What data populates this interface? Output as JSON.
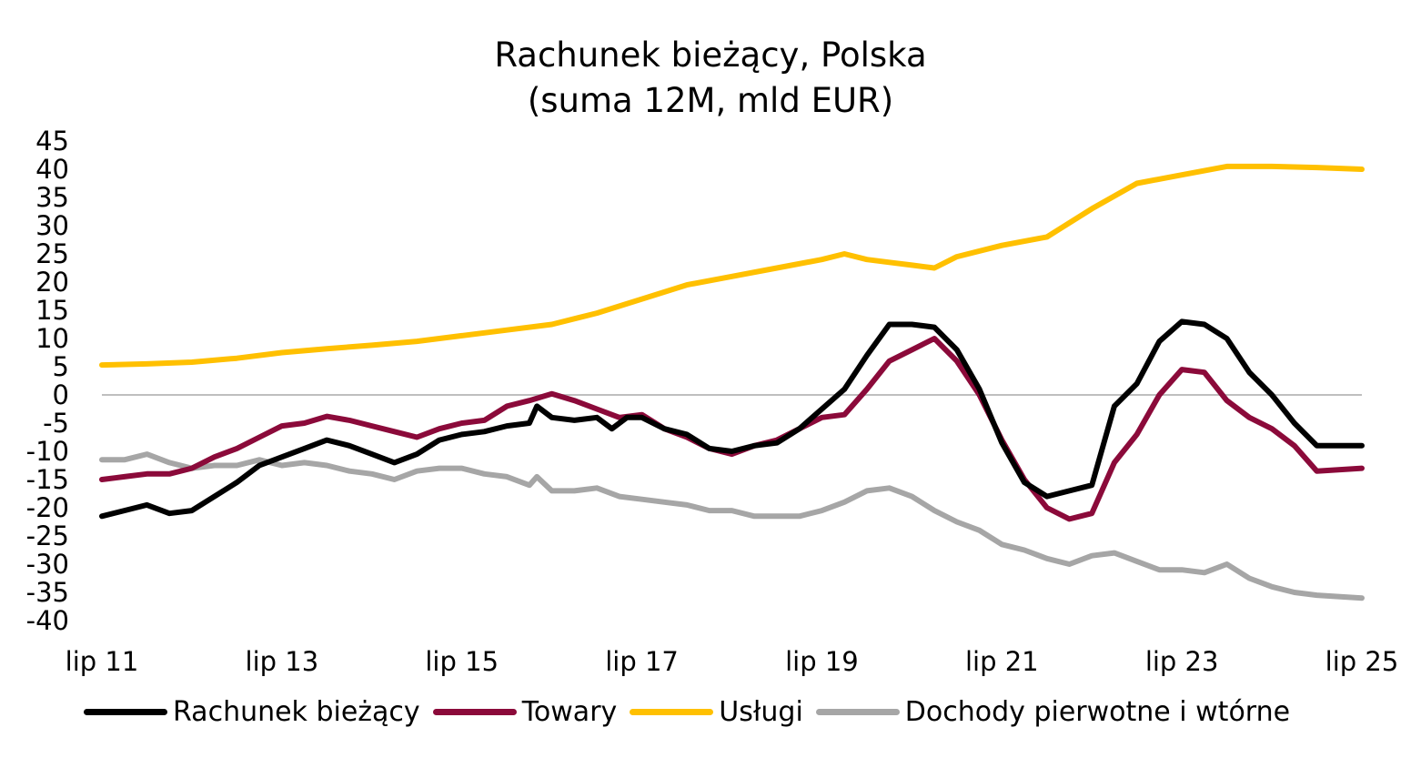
{
  "chart_data": {
    "type": "line",
    "title": [
      "Rachunek bieżący, Polska",
      "(suma 12M, mld EUR)"
    ],
    "xlabel": "",
    "ylabel": "",
    "x_tick_labels": [
      "lip 11",
      "lip 13",
      "lip 15",
      "lip 17",
      "lip 19",
      "lip 21",
      "lip 23",
      "lip 25"
    ],
    "y_ticks": [
      45,
      40,
      35,
      30,
      25,
      20,
      15,
      10,
      5,
      0,
      -5,
      -10,
      -15,
      -20,
      -25,
      -30,
      -35,
      -40
    ],
    "ylim": [
      -40,
      45
    ],
    "xlim": [
      "2011-07",
      "2025-07"
    ],
    "grid": false,
    "zero_line": true,
    "legend_position": "bottom",
    "series": [
      {
        "name": "Rachunek bieżący",
        "color": "#000000",
        "points": [
          [
            "2011-07",
            -21.5
          ],
          [
            "2011-10",
            -20.5
          ],
          [
            "2012-01",
            -19.5
          ],
          [
            "2012-04",
            -21
          ],
          [
            "2012-07",
            -20.5
          ],
          [
            "2012-10",
            -18
          ],
          [
            "2013-01",
            -15.5
          ],
          [
            "2013-04",
            -12.5
          ],
          [
            "2013-07",
            -11
          ],
          [
            "2013-10",
            -9.5
          ],
          [
            "2014-01",
            -8
          ],
          [
            "2014-04",
            -9
          ],
          [
            "2014-07",
            -10.5
          ],
          [
            "2014-10",
            -12
          ],
          [
            "2015-01",
            -10.5
          ],
          [
            "2015-04",
            -8
          ],
          [
            "2015-07",
            -7
          ],
          [
            "2015-10",
            -6.5
          ],
          [
            "2016-01",
            -5.5
          ],
          [
            "2016-04",
            -5
          ],
          [
            "2016-05",
            -2
          ],
          [
            "2016-07",
            -4
          ],
          [
            "2016-10",
            -4.5
          ],
          [
            "2017-01",
            -4
          ],
          [
            "2017-03",
            -6
          ],
          [
            "2017-05",
            -4
          ],
          [
            "2017-07",
            -4
          ],
          [
            "2017-10",
            -6
          ],
          [
            "2018-01",
            -7
          ],
          [
            "2018-04",
            -9.5
          ],
          [
            "2018-07",
            -10
          ],
          [
            "2018-10",
            -9
          ],
          [
            "2019-01",
            -8.5
          ],
          [
            "2019-04",
            -6
          ],
          [
            "2019-07",
            -2.5
          ],
          [
            "2019-10",
            1
          ],
          [
            "2020-01",
            7
          ],
          [
            "2020-04",
            12.5
          ],
          [
            "2020-07",
            12.5
          ],
          [
            "2020-10",
            12
          ],
          [
            "2021-01",
            8
          ],
          [
            "2021-04",
            1
          ],
          [
            "2021-07",
            -8.5
          ],
          [
            "2021-10",
            -15.5
          ],
          [
            "2022-01",
            -18
          ],
          [
            "2022-04",
            -17
          ],
          [
            "2022-07",
            -16
          ],
          [
            "2022-10",
            -2
          ],
          [
            "2023-01",
            2
          ],
          [
            "2023-04",
            9.5
          ],
          [
            "2023-07",
            13
          ],
          [
            "2023-10",
            12.5
          ],
          [
            "2024-01",
            10
          ],
          [
            "2024-04",
            4
          ],
          [
            "2024-07",
            0
          ],
          [
            "2024-10",
            -5
          ],
          [
            "2025-01",
            -9
          ],
          [
            "2025-07",
            -9
          ]
        ]
      },
      {
        "name": "Towary",
        "color": "#8b0a3a",
        "points": [
          [
            "2011-07",
            -15
          ],
          [
            "2011-10",
            -14.5
          ],
          [
            "2012-01",
            -14
          ],
          [
            "2012-04",
            -14
          ],
          [
            "2012-07",
            -13
          ],
          [
            "2012-10",
            -11
          ],
          [
            "2013-01",
            -9.5
          ],
          [
            "2013-04",
            -7.5
          ],
          [
            "2013-07",
            -5.5
          ],
          [
            "2013-10",
            -5
          ],
          [
            "2014-01",
            -3.8
          ],
          [
            "2014-04",
            -4.5
          ],
          [
            "2014-07",
            -5.5
          ],
          [
            "2014-10",
            -6.5
          ],
          [
            "2015-01",
            -7.5
          ],
          [
            "2015-04",
            -6
          ],
          [
            "2015-07",
            -5
          ],
          [
            "2015-10",
            -4.5
          ],
          [
            "2016-01",
            -2
          ],
          [
            "2016-04",
            -1
          ],
          [
            "2016-07",
            0.2
          ],
          [
            "2016-10",
            -1
          ],
          [
            "2017-01",
            -2.5
          ],
          [
            "2017-04",
            -4
          ],
          [
            "2017-07",
            -3.5
          ],
          [
            "2017-10",
            -6
          ],
          [
            "2018-01",
            -7.5
          ],
          [
            "2018-04",
            -9.5
          ],
          [
            "2018-07",
            -10.5
          ],
          [
            "2018-10",
            -9
          ],
          [
            "2019-01",
            -8
          ],
          [
            "2019-04",
            -6
          ],
          [
            "2019-07",
            -4
          ],
          [
            "2019-10",
            -3.5
          ],
          [
            "2020-01",
            1
          ],
          [
            "2020-04",
            6
          ],
          [
            "2020-07",
            8
          ],
          [
            "2020-10",
            10
          ],
          [
            "2021-01",
            6
          ],
          [
            "2021-04",
            0
          ],
          [
            "2021-07",
            -8
          ],
          [
            "2021-10",
            -15
          ],
          [
            "2022-01",
            -20
          ],
          [
            "2022-04",
            -22
          ],
          [
            "2022-07",
            -21
          ],
          [
            "2022-10",
            -12
          ],
          [
            "2023-01",
            -7
          ],
          [
            "2023-04",
            0
          ],
          [
            "2023-07",
            4.5
          ],
          [
            "2023-10",
            4
          ],
          [
            "2024-01",
            -1
          ],
          [
            "2024-04",
            -4
          ],
          [
            "2024-07",
            -6
          ],
          [
            "2024-10",
            -9
          ],
          [
            "2025-01",
            -13.5
          ],
          [
            "2025-07",
            -13
          ]
        ]
      },
      {
        "name": "Usługi",
        "color": "#ffc000",
        "points": [
          [
            "2011-07",
            5.3
          ],
          [
            "2012-01",
            5.5
          ],
          [
            "2012-07",
            5.8
          ],
          [
            "2013-01",
            6.5
          ],
          [
            "2013-07",
            7.5
          ],
          [
            "2014-01",
            8.2
          ],
          [
            "2014-07",
            8.8
          ],
          [
            "2015-01",
            9.5
          ],
          [
            "2015-07",
            10.5
          ],
          [
            "2016-01",
            11.5
          ],
          [
            "2016-07",
            12.5
          ],
          [
            "2017-01",
            14.5
          ],
          [
            "2017-07",
            17
          ],
          [
            "2018-01",
            19.5
          ],
          [
            "2018-07",
            21
          ],
          [
            "2019-01",
            22.5
          ],
          [
            "2019-07",
            24
          ],
          [
            "2019-10",
            25
          ],
          [
            "2020-01",
            24
          ],
          [
            "2020-04",
            23.5
          ],
          [
            "2020-07",
            23
          ],
          [
            "2020-10",
            22.5
          ],
          [
            "2021-01",
            24.5
          ],
          [
            "2021-07",
            26.5
          ],
          [
            "2022-01",
            28
          ],
          [
            "2022-07",
            33
          ],
          [
            "2023-01",
            37.5
          ],
          [
            "2023-07",
            39
          ],
          [
            "2024-01",
            40.5
          ],
          [
            "2024-07",
            40.5
          ],
          [
            "2025-01",
            40.3
          ],
          [
            "2025-07",
            40
          ]
        ]
      },
      {
        "name": "Dochody pierwotne i wtórne",
        "color": "#a6a6a6",
        "points": [
          [
            "2011-07",
            -11.5
          ],
          [
            "2011-10",
            -11.5
          ],
          [
            "2012-01",
            -10.5
          ],
          [
            "2012-04",
            -12
          ],
          [
            "2012-07",
            -13
          ],
          [
            "2012-10",
            -12.5
          ],
          [
            "2013-01",
            -12.5
          ],
          [
            "2013-04",
            -11.5
          ],
          [
            "2013-07",
            -12.5
          ],
          [
            "2013-10",
            -12
          ],
          [
            "2014-01",
            -12.5
          ],
          [
            "2014-04",
            -13.5
          ],
          [
            "2014-07",
            -14
          ],
          [
            "2014-10",
            -15
          ],
          [
            "2015-01",
            -13.5
          ],
          [
            "2015-04",
            -13
          ],
          [
            "2015-07",
            -13
          ],
          [
            "2015-10",
            -14
          ],
          [
            "2016-01",
            -14.5
          ],
          [
            "2016-04",
            -16
          ],
          [
            "2016-05",
            -14.5
          ],
          [
            "2016-07",
            -17
          ],
          [
            "2016-10",
            -17
          ],
          [
            "2017-01",
            -16.5
          ],
          [
            "2017-04",
            -18
          ],
          [
            "2017-07",
            -18.5
          ],
          [
            "2017-10",
            -19
          ],
          [
            "2018-01",
            -19.5
          ],
          [
            "2018-04",
            -20.5
          ],
          [
            "2018-07",
            -20.5
          ],
          [
            "2018-10",
            -21.5
          ],
          [
            "2019-01",
            -21.5
          ],
          [
            "2019-04",
            -21.5
          ],
          [
            "2019-07",
            -20.5
          ],
          [
            "2019-10",
            -19
          ],
          [
            "2020-01",
            -17
          ],
          [
            "2020-04",
            -16.5
          ],
          [
            "2020-07",
            -18
          ],
          [
            "2020-10",
            -20.5
          ],
          [
            "2021-01",
            -22.5
          ],
          [
            "2021-04",
            -24
          ],
          [
            "2021-07",
            -26.5
          ],
          [
            "2021-10",
            -27.5
          ],
          [
            "2022-01",
            -29
          ],
          [
            "2022-04",
            -30
          ],
          [
            "2022-07",
            -28.5
          ],
          [
            "2022-10",
            -28
          ],
          [
            "2023-01",
            -29.5
          ],
          [
            "2023-04",
            -31
          ],
          [
            "2023-07",
            -31
          ],
          [
            "2023-10",
            -31.5
          ],
          [
            "2024-01",
            -30
          ],
          [
            "2024-04",
            -32.5
          ],
          [
            "2024-07",
            -34
          ],
          [
            "2024-10",
            -35
          ],
          [
            "2025-01",
            -35.5
          ],
          [
            "2025-07",
            -36
          ]
        ]
      }
    ]
  }
}
